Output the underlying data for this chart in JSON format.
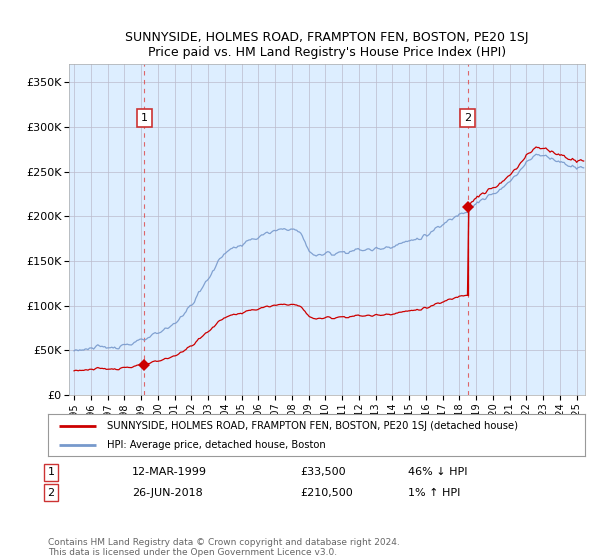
{
  "title": "SUNNYSIDE, HOLMES ROAD, FRAMPTON FEN, BOSTON, PE20 1SJ",
  "subtitle": "Price paid vs. HM Land Registry's House Price Index (HPI)",
  "ylabel_ticks": [
    "£0",
    "£50K",
    "£100K",
    "£150K",
    "£200K",
    "£250K",
    "£300K",
    "£350K"
  ],
  "ytick_vals": [
    0,
    50000,
    100000,
    150000,
    200000,
    250000,
    300000,
    350000
  ],
  "ylim": [
    0,
    370000
  ],
  "xlim_start": 1994.7,
  "xlim_end": 2025.5,
  "red_color": "#cc0000",
  "blue_color": "#7799cc",
  "plot_bg_color": "#ddeeff",
  "legend_label_red": "SUNNYSIDE, HOLMES ROAD, FRAMPTON FEN, BOSTON, PE20 1SJ (detached house)",
  "legend_label_blue": "HPI: Average price, detached house, Boston",
  "sale1_x": 1999.19,
  "sale1_y": 33500,
  "sale2_x": 2018.49,
  "sale2_y": 210500,
  "footer": "Contains HM Land Registry data © Crown copyright and database right 2024.\nThis data is licensed under the Open Government Licence v3.0.",
  "background_color": "#ffffff",
  "grid_color": "#bbbbcc"
}
